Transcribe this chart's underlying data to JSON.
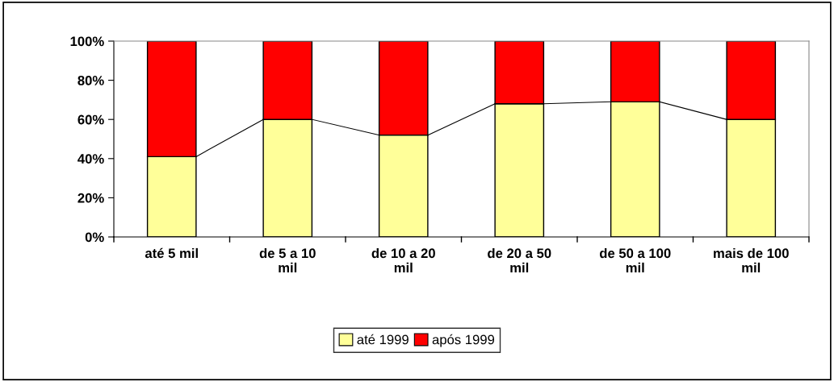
{
  "chart_data": {
    "type": "bar",
    "stacked": true,
    "categories": [
      "até 5 mil",
      "de 5 a 10 mil",
      "de 10 a 20 mil",
      "de 20 a 50 mil",
      "de 50 a 100 mil",
      "mais de 100 mil"
    ],
    "series": [
      {
        "name": "até 1999",
        "color": "#ffff99",
        "values": [
          41,
          60,
          52,
          68,
          69,
          60
        ]
      },
      {
        "name": "após 1999",
        "color": "#ff0000",
        "values": [
          59,
          40,
          48,
          32,
          31,
          40
        ]
      }
    ],
    "ylim": [
      0,
      100
    ],
    "yticks": [
      {
        "value": 0,
        "label": "0%"
      },
      {
        "value": 20,
        "label": "20%"
      },
      {
        "value": 40,
        "label": "40%"
      },
      {
        "value": 60,
        "label": "60%"
      },
      {
        "value": 80,
        "label": "80%"
      },
      {
        "value": 100,
        "label": "100%"
      }
    ],
    "legend": "bottom",
    "grid": false
  }
}
